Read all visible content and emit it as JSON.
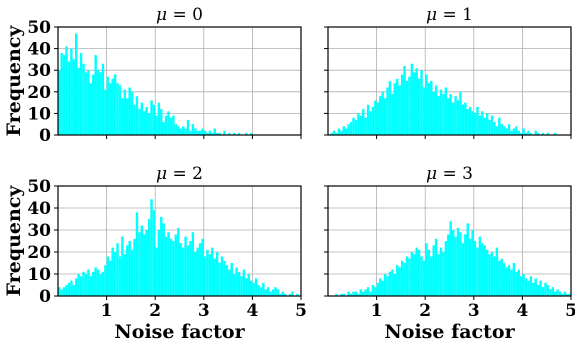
{
  "figure": {
    "ylabel": "Frequency",
    "xlabel": "Noise factor",
    "xlim": [
      0,
      5
    ],
    "ylim": [
      0,
      50
    ],
    "xticks": [
      1,
      2,
      3,
      4,
      5
    ],
    "yticks": [
      0,
      10,
      20,
      30,
      40,
      50
    ],
    "bar_color": "#00ffff",
    "grid_color": "#b0b0b0"
  },
  "chart_data": [
    {
      "type": "bar",
      "title_prefix": "μ",
      "title_value": "= 0",
      "bin_start": 0.0,
      "bin_width": 0.05,
      "values": [
        30,
        38,
        37,
        41,
        34,
        40,
        35,
        47,
        31,
        38,
        33,
        29,
        30,
        24,
        28,
        37,
        30,
        29,
        33,
        21,
        27,
        24,
        26,
        28,
        24,
        23,
        17,
        21,
        17,
        22,
        20,
        14,
        18,
        12,
        15,
        11,
        13,
        10,
        16,
        14,
        9,
        15,
        12,
        6,
        9,
        11,
        8,
        9,
        5,
        4,
        3,
        4,
        3,
        7,
        2,
        5,
        3,
        2,
        2,
        3,
        2,
        1,
        2,
        1,
        3,
        1,
        1,
        0,
        2,
        0,
        1,
        0,
        1,
        0,
        1,
        0,
        0,
        1,
        0,
        1,
        0,
        0,
        0,
        0,
        0,
        0,
        0,
        0,
        0,
        0,
        0,
        0,
        0,
        0,
        0,
        0,
        0,
        0,
        0,
        0
      ]
    },
    {
      "type": "bar",
      "title_prefix": "μ",
      "title_value": "= 1",
      "bin_start": 0.0,
      "bin_width": 0.05,
      "values": [
        0,
        1,
        2,
        1,
        3,
        2,
        4,
        3,
        5,
        6,
        8,
        7,
        10,
        9,
        12,
        8,
        14,
        11,
        13,
        16,
        15,
        18,
        20,
        17,
        22,
        25,
        19,
        24,
        26,
        23,
        28,
        32,
        25,
        27,
        33,
        29,
        31,
        26,
        30,
        22,
        28,
        24,
        25,
        20,
        23,
        18,
        21,
        19,
        22,
        17,
        19,
        15,
        18,
        16,
        20,
        14,
        15,
        12,
        13,
        11,
        10,
        13,
        9,
        11,
        8,
        10,
        7,
        9,
        6,
        4,
        8,
        5,
        4,
        3,
        5,
        2,
        3,
        4,
        2,
        1,
        3,
        1,
        2,
        1,
        0,
        2,
        1,
        0,
        1,
        0,
        1,
        0,
        0,
        1,
        0,
        0,
        0,
        0,
        0,
        0
      ]
    },
    {
      "type": "bar",
      "title_prefix": "μ",
      "title_value": "= 2",
      "bin_start": 0.0,
      "bin_width": 0.05,
      "values": [
        4,
        3,
        4,
        5,
        6,
        7,
        5,
        8,
        10,
        9,
        11,
        10,
        12,
        9,
        11,
        13,
        12,
        10,
        11,
        14,
        18,
        16,
        22,
        20,
        24,
        18,
        27,
        19,
        23,
        25,
        21,
        26,
        38,
        29,
        32,
        28,
        30,
        35,
        44,
        39,
        22,
        30,
        36,
        33,
        27,
        29,
        26,
        25,
        28,
        31,
        24,
        22,
        27,
        23,
        25,
        29,
        20,
        22,
        24,
        26,
        18,
        21,
        19,
        22,
        17,
        20,
        15,
        18,
        16,
        14,
        12,
        15,
        10,
        13,
        11,
        9,
        12,
        8,
        10,
        7,
        6,
        8,
        5,
        4,
        6,
        3,
        4,
        2,
        3,
        4,
        3,
        1,
        2,
        1,
        0,
        1,
        2,
        0,
        1,
        0
      ]
    },
    {
      "type": "bar",
      "title_prefix": "μ",
      "title_value": "= 3",
      "bin_start": 0.0,
      "bin_width": 0.05,
      "values": [
        0,
        0,
        0,
        1,
        0,
        1,
        1,
        0,
        2,
        1,
        2,
        2,
        1,
        3,
        2,
        3,
        4,
        2,
        5,
        4,
        6,
        8,
        7,
        10,
        9,
        11,
        12,
        10,
        14,
        13,
        16,
        15,
        18,
        17,
        20,
        19,
        22,
        21,
        18,
        16,
        24,
        21,
        18,
        23,
        26,
        19,
        22,
        20,
        25,
        28,
        34,
        30,
        27,
        31,
        29,
        24,
        28,
        33,
        26,
        30,
        25,
        22,
        27,
        24,
        23,
        21,
        19,
        20,
        18,
        22,
        16,
        17,
        15,
        13,
        14,
        12,
        15,
        11,
        12,
        9,
        10,
        8,
        7,
        9,
        6,
        8,
        5,
        7,
        4,
        6,
        5,
        3,
        4,
        2,
        3,
        2,
        1,
        2,
        1,
        1
      ]
    }
  ]
}
